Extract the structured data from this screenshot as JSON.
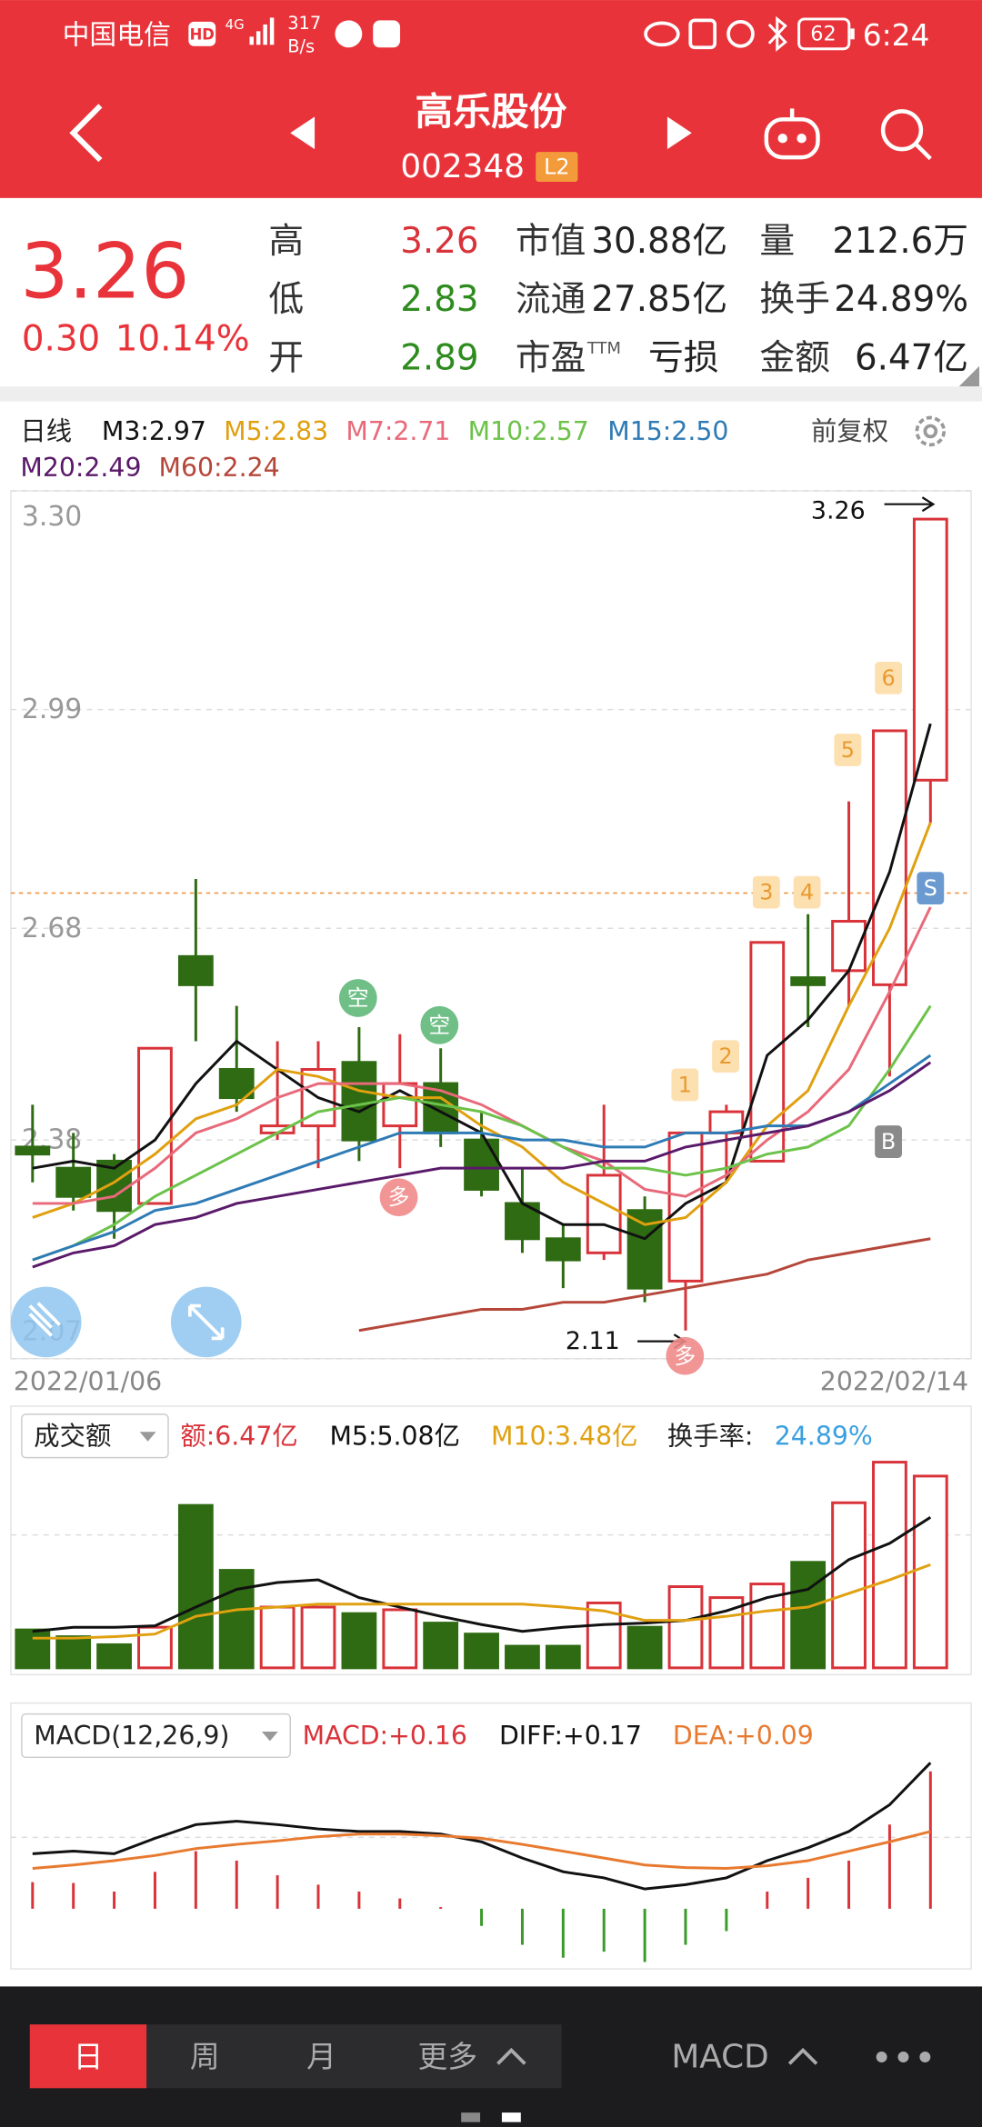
{
  "status_bar": {
    "carrier": "中国电信",
    "hd": "HD",
    "network": "4G",
    "speed": "317",
    "speed_unit": "B/s",
    "battery": "62",
    "time": "6:24"
  },
  "header": {
    "title": "高乐股份",
    "code": "002348",
    "level": "L2"
  },
  "quote": {
    "price": "3.26",
    "change": "0.30",
    "change_pct": "10.14%",
    "fields": [
      {
        "label": "高",
        "value": "3.26"
      },
      {
        "label": "低",
        "value": "2.83"
      },
      {
        "label": "开",
        "value": "2.89"
      },
      {
        "label": "市值",
        "value": "30.88亿"
      },
      {
        "label": "流通",
        "value": "27.85亿"
      },
      {
        "label": "市盈",
        "sup": "TTM",
        "value": "亏损"
      },
      {
        "label": "量",
        "value": "212.6万"
      },
      {
        "label": "换手",
        "value": "24.89%"
      },
      {
        "label": "金额",
        "value": "6.47亿"
      }
    ]
  },
  "chart_data": [
    {
      "type": "candlestick",
      "title": "日线",
      "adjust": "前复权",
      "x": [
        "2022/01/06",
        null,
        null,
        null,
        null,
        null,
        null,
        null,
        null,
        null,
        null,
        null,
        null,
        null,
        null,
        null,
        null,
        null,
        null,
        null,
        null,
        null,
        "2022/02/14"
      ],
      "open": [
        2.37,
        2.34,
        2.35,
        2.29,
        2.64,
        2.48,
        2.39,
        2.4,
        2.49,
        2.4,
        2.46,
        2.38,
        2.29,
        2.24,
        2.22,
        2.28,
        2.18,
        2.39,
        2.35,
        2.61,
        2.62,
        2.6,
        2.89
      ],
      "high": [
        2.43,
        2.39,
        2.36,
        2.51,
        2.75,
        2.57,
        2.52,
        2.52,
        2.54,
        2.53,
        2.51,
        2.42,
        2.34,
        2.26,
        2.43,
        2.3,
        2.39,
        2.43,
        2.66,
        2.7,
        2.86,
        2.96,
        3.26
      ],
      "low": [
        2.32,
        2.28,
        2.24,
        2.29,
        2.52,
        2.42,
        2.38,
        2.34,
        2.35,
        2.34,
        2.37,
        2.3,
        2.22,
        2.17,
        2.21,
        2.15,
        2.11,
        2.32,
        2.35,
        2.54,
        2.57,
        2.47,
        2.83
      ],
      "close": [
        2.36,
        2.3,
        2.28,
        2.51,
        2.6,
        2.44,
        2.4,
        2.48,
        2.38,
        2.46,
        2.39,
        2.31,
        2.24,
        2.21,
        2.33,
        2.17,
        2.39,
        2.42,
        2.66,
        2.6,
        2.69,
        2.96,
        3.26
      ],
      "up_color": "#d9333a",
      "down_color": "#2e6b12",
      "ylim": [
        2.07,
        3.3
      ],
      "yticks": [
        {
          "value": 3.3,
          "label": "3.30"
        },
        2.99,
        2.68,
        2.38,
        2.07
      ],
      "grid": true,
      "ref_line": 2.73,
      "series": [
        {
          "name": "M3:2.97",
          "color": "#111111",
          "values": [
            2.34,
            2.35,
            2.34,
            2.38,
            2.46,
            2.52,
            2.48,
            2.44,
            2.42,
            2.45,
            2.42,
            2.39,
            2.29,
            2.26,
            2.26,
            2.24,
            2.29,
            2.32,
            2.5,
            2.55,
            2.62,
            2.76,
            2.97
          ]
        },
        {
          "name": "M5:2.83",
          "color": "#e0a010",
          "values": [
            2.27,
            2.29,
            2.32,
            2.36,
            2.41,
            2.43,
            2.48,
            2.47,
            2.45,
            2.44,
            2.44,
            2.4,
            2.37,
            2.32,
            2.29,
            2.26,
            2.27,
            2.32,
            2.4,
            2.45,
            2.57,
            2.68,
            2.83
          ]
        },
        {
          "name": "M7:2.71",
          "color": "#e86a7a",
          "values": [
            2.29,
            2.29,
            2.3,
            2.34,
            2.39,
            2.41,
            2.44,
            2.46,
            2.46,
            2.46,
            2.45,
            2.43,
            2.4,
            2.37,
            2.35,
            2.31,
            2.3,
            2.33,
            2.38,
            2.42,
            2.48,
            2.59,
            2.71
          ]
        },
        {
          "name": "M10:2.57",
          "color": "#6cc24a",
          "values": [
            2.21,
            2.23,
            2.26,
            2.3,
            2.33,
            2.36,
            2.39,
            2.42,
            2.43,
            2.44,
            2.43,
            2.42,
            2.4,
            2.37,
            2.34,
            2.34,
            2.33,
            2.34,
            2.36,
            2.37,
            2.4,
            2.48,
            2.57
          ]
        },
        {
          "name": "M15:2.50",
          "color": "#2f7bb5",
          "values": [
            2.21,
            2.23,
            2.25,
            2.28,
            2.29,
            2.31,
            2.33,
            2.35,
            2.37,
            2.39,
            2.39,
            2.39,
            2.38,
            2.38,
            2.37,
            2.37,
            2.39,
            2.39,
            2.4,
            2.4,
            2.42,
            2.46,
            2.5
          ]
        },
        {
          "name": "M20:2.49",
          "color": "#5a1a6a",
          "values": [
            2.2,
            2.22,
            2.23,
            2.26,
            2.27,
            2.29,
            2.3,
            2.31,
            2.32,
            2.33,
            2.34,
            2.34,
            2.34,
            2.34,
            2.35,
            2.35,
            2.37,
            2.38,
            2.39,
            2.4,
            2.42,
            2.45,
            2.49
          ]
        },
        {
          "name": "M60:2.24",
          "color": "#b5473a",
          "values": [
            null,
            null,
            null,
            null,
            null,
            null,
            null,
            null,
            2.11,
            2.12,
            2.13,
            2.14,
            2.14,
            2.15,
            2.15,
            2.16,
            2.17,
            2.18,
            2.19,
            2.21,
            2.22,
            2.23,
            2.24
          ]
        }
      ],
      "annotations": [
        {
          "label": "3.26",
          "value": 3.26
        },
        {
          "label": "2.11",
          "value": 2.11
        }
      ],
      "signals": [
        "空",
        "空",
        "多",
        "多",
        "1",
        "2",
        "3",
        "4",
        "5",
        "6",
        "S",
        "B"
      ]
    },
    {
      "type": "bar",
      "title": "成交额",
      "value_legend": "额:6.47亿",
      "turnover_label": "换手率:",
      "turnover": "24.89%",
      "values": [
        1.28,
        1.05,
        0.78,
        1.37,
        5.48,
        3.29,
        2.05,
        2.05,
        1.83,
        1.96,
        1.51,
        1.14,
        0.73,
        0.73,
        2.19,
        1.37,
        2.74,
        2.37,
        2.83,
        3.56,
        5.57,
        6.94,
        6.47
      ],
      "ylim": [
        0,
        7
      ],
      "series": [
        {
          "name": "M5:5.08亿",
          "color": "#111111",
          "values": [
            1.23,
            1.37,
            1.37,
            1.42,
            2.05,
            2.65,
            2.88,
            2.97,
            2.37,
            2.05,
            1.74,
            1.46,
            1.23,
            1.37,
            1.46,
            1.51,
            1.6,
            1.92,
            2.37,
            2.65,
            3.65,
            4.2,
            5.08
          ]
        },
        {
          "name": "M10:3.48亿",
          "color": "#e0a010",
          "values": [
            1.0,
            1.0,
            1.05,
            1.14,
            1.74,
            1.96,
            2.05,
            2.15,
            2.15,
            2.15,
            2.15,
            2.15,
            2.15,
            2.05,
            1.92,
            1.6,
            1.6,
            1.74,
            1.92,
            2.05,
            2.51,
            2.97,
            3.48
          ]
        }
      ]
    },
    {
      "type": "macd",
      "title": "MACD(12,26,9)",
      "bars_name": "MACD:+0.16",
      "values": [
        0.031,
        0.03,
        0.02,
        0.043,
        0.067,
        0.056,
        0.039,
        0.028,
        0.02,
        0.012,
        0.002,
        -0.02,
        -0.042,
        -0.057,
        -0.05,
        -0.062,
        -0.042,
        -0.026,
        0.02,
        0.036,
        0.056,
        0.098,
        0.16
      ],
      "ylim": [
        -0.07,
        0.23
      ],
      "series": [
        {
          "name": "DIFF:+0.17",
          "color": "#111111",
          "values": [
            0.064,
            0.067,
            0.064,
            0.082,
            0.098,
            0.102,
            0.098,
            0.093,
            0.09,
            0.09,
            0.087,
            0.078,
            0.059,
            0.043,
            0.036,
            0.023,
            0.028,
            0.036,
            0.056,
            0.071,
            0.09,
            0.121,
            0.17
          ]
        },
        {
          "name": "DEA:+0.09",
          "color": "#e87a30",
          "values": [
            0.047,
            0.051,
            0.056,
            0.062,
            0.07,
            0.075,
            0.079,
            0.084,
            0.087,
            0.087,
            0.085,
            0.082,
            0.075,
            0.067,
            0.059,
            0.051,
            0.048,
            0.047,
            0.05,
            0.056,
            0.067,
            0.078,
            0.09
          ]
        }
      ]
    }
  ],
  "tabs": [
    "日",
    "周",
    "月",
    "更多"
  ],
  "indicator_button": "MACD"
}
